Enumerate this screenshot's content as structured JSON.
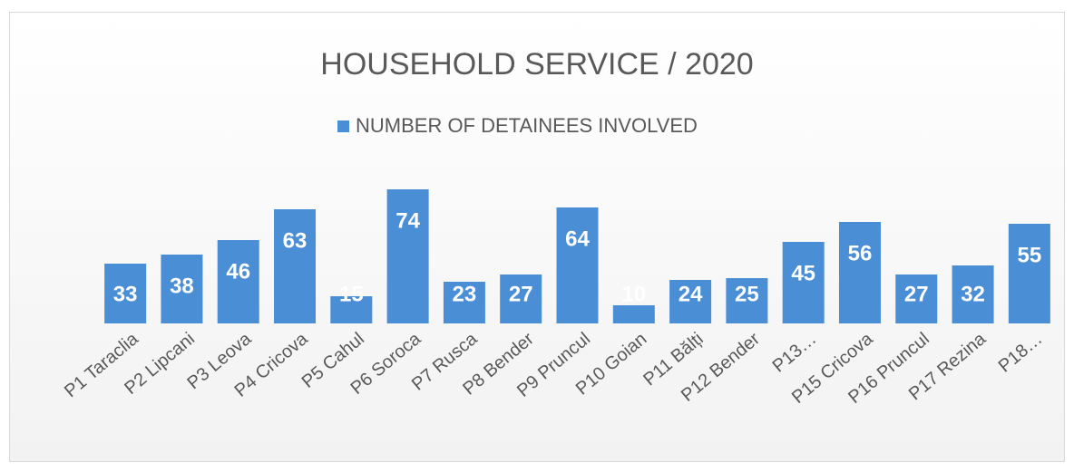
{
  "chart_data": {
    "type": "bar",
    "title": "HOUSEHOLD SERVICE / 2020",
    "categories": [
      "P1 Taraclia",
      "P2 Lipcani",
      "P3 Leova",
      "P4 Cricova",
      "P5 Cahul",
      "P6 Soroca",
      "P7 Rusca",
      "P8 Bender",
      "P9 Pruncul",
      "P10 Goian",
      "P11 Bălți",
      "P12 Bender",
      "P13…",
      "P15 Cricova",
      "P16 Pruncul",
      "P17 Rezina",
      "P18…"
    ],
    "series": [
      {
        "name": "NUMBER OF DETAINEES INVOLVED",
        "color": "#4a8ed6",
        "values": [
          33,
          38,
          46,
          63,
          15,
          74,
          23,
          27,
          64,
          10,
          24,
          25,
          45,
          56,
          27,
          32,
          55
        ]
      }
    ],
    "legend": "top"
  }
}
